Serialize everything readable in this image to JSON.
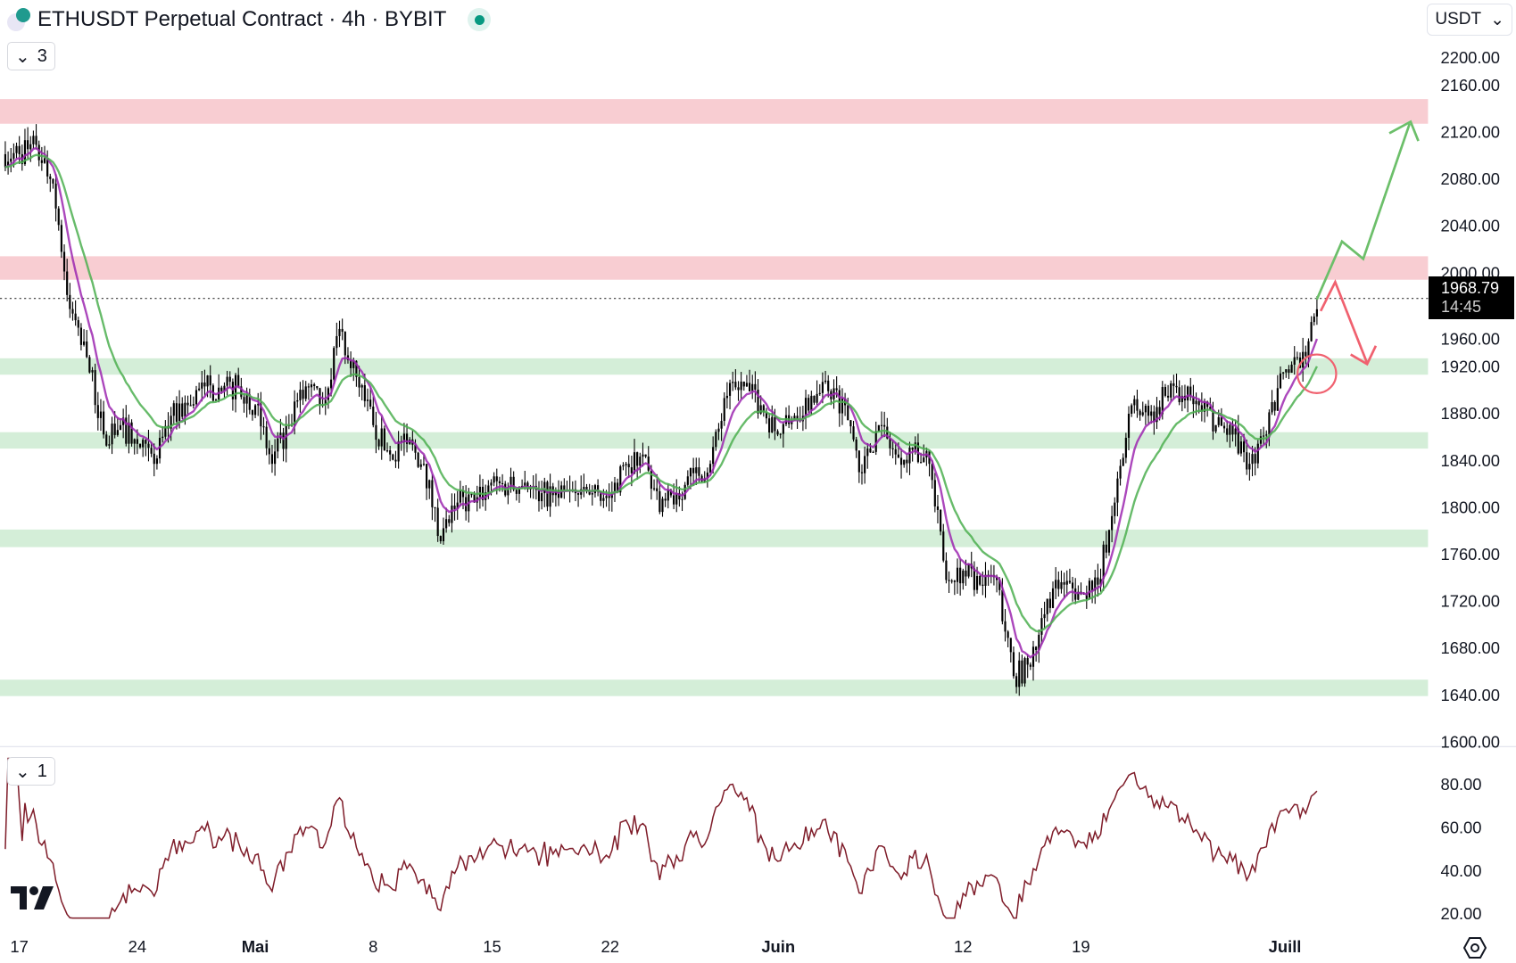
{
  "header": {
    "title": "ETHUSDT Perpetual Contract · 4h · BYBIT",
    "status_color": "#089981",
    "collapse_count": "3"
  },
  "currency_select": {
    "value": "USDT"
  },
  "rsi_pane": {
    "collapse_count": "1",
    "line_color": "#7f1d2a"
  },
  "last_price": {
    "value": "1968.79",
    "countdown": "14:45"
  },
  "chart_data": {
    "type": "candlestick",
    "timeframe": "4h",
    "price_axis": {
      "ticks": [
        "2200.00",
        "2160.00",
        "2120.00",
        "2080.00",
        "2040.00",
        "2000.00",
        "1960.00",
        "1920.00",
        "1880.00",
        "1840.00",
        "1800.00",
        "1760.00",
        "1720.00",
        "1680.00",
        "1640.00",
        "1600.00"
      ],
      "range": [
        1600,
        2200
      ]
    },
    "date_axis": {
      "ticks": [
        {
          "label": "17",
          "bold": false
        },
        {
          "label": "24",
          "bold": false
        },
        {
          "label": "Mai",
          "bold": true
        },
        {
          "label": "8",
          "bold": false
        },
        {
          "label": "15",
          "bold": false
        },
        {
          "label": "22",
          "bold": false
        },
        {
          "label": "Juin",
          "bold": true
        },
        {
          "label": "12",
          "bold": false
        },
        {
          "label": "19",
          "bold": false
        },
        {
          "label": "Juill",
          "bold": true
        }
      ]
    },
    "daily_closes": [
      2101,
      2109,
      2076,
      1969,
      1928,
      1862,
      1870,
      1854,
      1837,
      1878,
      1887,
      1903,
      1899,
      1903,
      1887,
      1837,
      1870,
      1903,
      1887,
      1952,
      1911,
      1870,
      1845,
      1854,
      1837,
      1771,
      1804,
      1804,
      1821,
      1817,
      1821,
      1812,
      1808,
      1812,
      1812,
      1808,
      1837,
      1845,
      1796,
      1812,
      1829,
      1837,
      1895,
      1903,
      1887,
      1862,
      1878,
      1895,
      1899,
      1887,
      1829,
      1870,
      1845,
      1849,
      1837,
      1738,
      1746,
      1734,
      1738,
      1656,
      1664,
      1722,
      1734,
      1726,
      1734,
      1804,
      1887,
      1878,
      1895,
      1895,
      1887,
      1870,
      1862,
      1837,
      1862,
      1915,
      1919,
      1968.79
    ],
    "moving_averages": [
      {
        "color": "#9c27b0"
      },
      {
        "color": "#4caf50"
      }
    ],
    "zones": [
      {
        "kind": "resistance",
        "from": 2127,
        "to": 2148,
        "color": "#f8cdd2"
      },
      {
        "kind": "resistance",
        "from": 1994,
        "to": 2014,
        "color": "#f8cdd2"
      },
      {
        "kind": "support",
        "from": 1913,
        "to": 1927,
        "color": "#d4eed8"
      },
      {
        "kind": "support",
        "from": 1850,
        "to": 1864,
        "color": "#d4eed8"
      },
      {
        "kind": "support",
        "from": 1766,
        "to": 1781,
        "color": "#d4eed8"
      },
      {
        "kind": "support",
        "from": 1639,
        "to": 1653,
        "color": "#d4eed8"
      }
    ],
    "annotations": [
      {
        "kind": "bullish-arrow",
        "color": "#6cbf6a"
      },
      {
        "kind": "bearish-arrow",
        "color": "#f0616f"
      },
      {
        "kind": "circle",
        "color": "#f0616f"
      }
    ],
    "rsi_axis": {
      "ticks": [
        "80.00",
        "60.00",
        "40.00",
        "20.00"
      ]
    }
  }
}
